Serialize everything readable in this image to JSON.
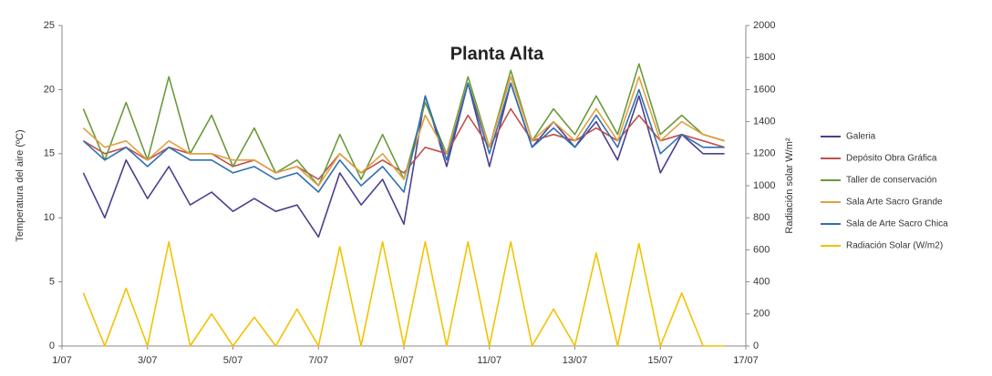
{
  "chart_data": {
    "type": "line",
    "title": "Planta Alta",
    "y_label": "Temperatura del aire (ºC)",
    "y2_label": "Radiación solar W/m²",
    "x": [
      1.5,
      2,
      2.5,
      3,
      3.5,
      4,
      4.5,
      5,
      5.5,
      6,
      6.5,
      7,
      7.5,
      8,
      8.5,
      9,
      9.5,
      10,
      10.5,
      11,
      11.5,
      12,
      12.5,
      13,
      13.5,
      14,
      14.5,
      15,
      15.5,
      16,
      16.5
    ],
    "xlim": [
      1,
      17
    ],
    "xticks": [
      {
        "value": 1,
        "label": "1/07"
      },
      {
        "value": 3,
        "label": "3/07"
      },
      {
        "value": 5,
        "label": "5/07"
      },
      {
        "value": 7,
        "label": "7/07"
      },
      {
        "value": 9,
        "label": "9/07"
      },
      {
        "value": 11,
        "label": "11/07"
      },
      {
        "value": 13,
        "label": "13/07"
      },
      {
        "value": 15,
        "label": "15/07"
      },
      {
        "value": 17,
        "label": "17/07"
      }
    ],
    "ylim": [
      0,
      25
    ],
    "yticks": [
      0,
      5,
      10,
      15,
      20,
      25
    ],
    "y2lim": [
      0,
      2000
    ],
    "y2ticks": [
      0,
      200,
      400,
      600,
      800,
      1000,
      1200,
      1400,
      1600,
      1800,
      2000
    ],
    "grid": false,
    "legend": "right",
    "series": [
      {
        "name": "Galeria",
        "color": "#4b3f8f",
        "values": [
          13.5,
          10,
          14.5,
          11.5,
          14,
          11,
          12,
          10.5,
          11.5,
          10.5,
          11,
          8.5,
          13.5,
          11,
          13,
          9.5,
          19.5,
          14,
          20.5,
          14,
          20.5,
          15.5,
          17.5,
          15.5,
          17.5,
          14.5,
          19.5,
          13.5,
          16.5,
          15,
          15
        ]
      },
      {
        "name": "Depósito Obra Gráfica",
        "color": "#c0504d",
        "values": [
          16,
          15,
          15.5,
          14.5,
          15.5,
          15,
          15,
          14,
          14.5,
          13.5,
          14,
          13,
          15,
          13.5,
          14.5,
          13.5,
          15.5,
          15,
          18,
          15.5,
          18.5,
          16,
          16.5,
          16,
          17,
          16,
          18,
          16,
          16.5,
          16,
          15.5
        ]
      },
      {
        "name": "Taller de conservación",
        "color": "#6a9a3a",
        "values": [
          18.5,
          14.5,
          19,
          14.5,
          21,
          15,
          18,
          14,
          17,
          13.5,
          14.5,
          12.5,
          16.5,
          13,
          16.5,
          13,
          19,
          15,
          21,
          15.5,
          21.5,
          16,
          18.5,
          16.5,
          19.5,
          16.5,
          22,
          16.5,
          18,
          16.5,
          16
        ]
      },
      {
        "name": "Sala Arte Sacro Grande",
        "color": "#e0a040",
        "values": [
          17,
          15.5,
          16,
          14.5,
          16,
          15,
          15,
          14.5,
          14.5,
          13.5,
          14,
          12.5,
          15,
          13.5,
          15,
          13,
          18,
          15,
          20.5,
          15.5,
          21,
          16,
          17.5,
          16,
          18.5,
          16,
          21,
          16,
          17.5,
          16.5,
          16
        ]
      },
      {
        "name": "Sala de Arte Sacro Chica",
        "color": "#2f6fb0",
        "values": [
          16,
          14.5,
          15.5,
          14,
          15.5,
          14.5,
          14.5,
          13.5,
          14,
          13,
          13.5,
          12,
          14.5,
          12.5,
          14,
          12,
          19.5,
          14.5,
          20.5,
          15,
          20.5,
          15.5,
          17,
          15.5,
          18,
          15.5,
          20,
          15,
          16.5,
          15.5,
          15.5
        ]
      },
      {
        "name": "Radiación Solar (W/m2)",
        "color": "#f2c200",
        "axis": "y2",
        "values": [
          330,
          0,
          360,
          0,
          650,
          0,
          200,
          0,
          180,
          0,
          230,
          0,
          620,
          0,
          650,
          0,
          650,
          0,
          650,
          0,
          650,
          0,
          230,
          0,
          580,
          0,
          640,
          0,
          330,
          0,
          0
        ]
      }
    ]
  }
}
